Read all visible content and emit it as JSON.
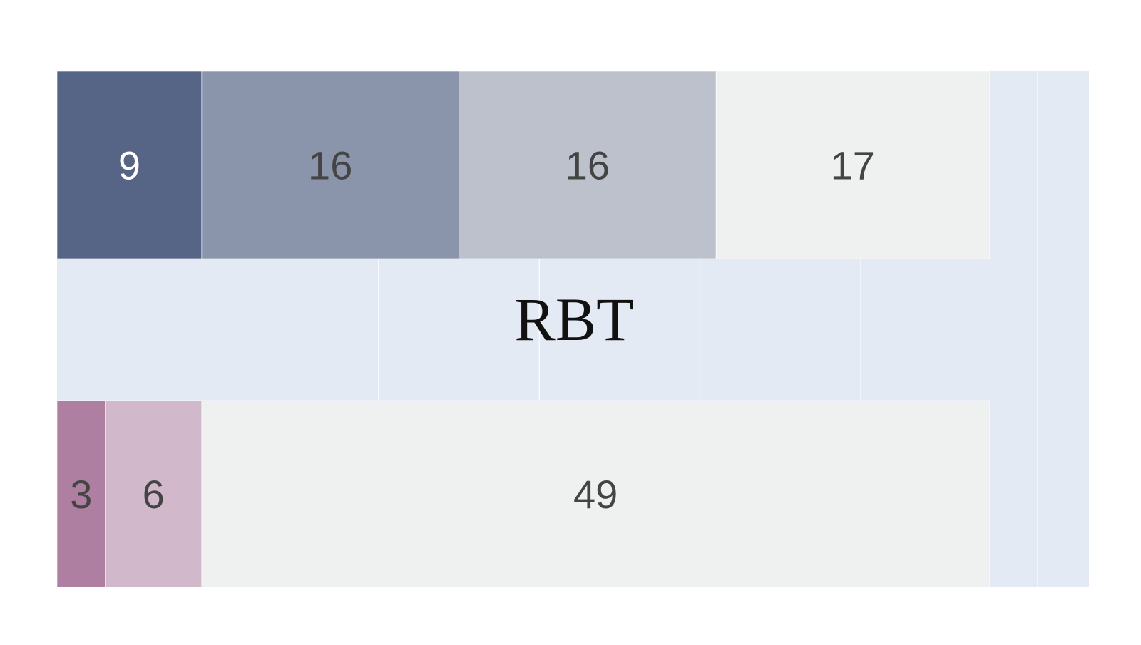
{
  "chart_data": {
    "type": "bar",
    "orientation": "horizontal",
    "stacked": true,
    "title": "",
    "center_label": "RBT",
    "xlim": [
      0,
      61
    ],
    "rows": [
      {
        "segments": [
          {
            "value": 9,
            "label": "9",
            "color": "#566585",
            "label_color": "#ffffff"
          },
          {
            "value": 16,
            "label": "16",
            "color": "#8a94ab",
            "label_color": "#444444"
          },
          {
            "value": 16,
            "label": "16",
            "color": "#bdc1cc",
            "label_color": "#444444"
          },
          {
            "value": 17,
            "label": "17",
            "color": "#eff0f0",
            "label_color": "#444444"
          }
        ]
      },
      {
        "segments": [
          {
            "value": 3,
            "label": "3",
            "color": "#ae7fa1",
            "label_color": "#444444"
          },
          {
            "value": 6,
            "label": "6",
            "color": "#d2b8cb",
            "label_color": "#444444"
          },
          {
            "value": 49,
            "label": "49",
            "color": "#eff0f0",
            "label_color": "#444444"
          }
        ]
      }
    ],
    "grid": true,
    "legend": "none"
  },
  "colors": {
    "plot_background": "#e4eaf4",
    "grid_line": "#ffffff",
    "center_label": "#111111"
  }
}
